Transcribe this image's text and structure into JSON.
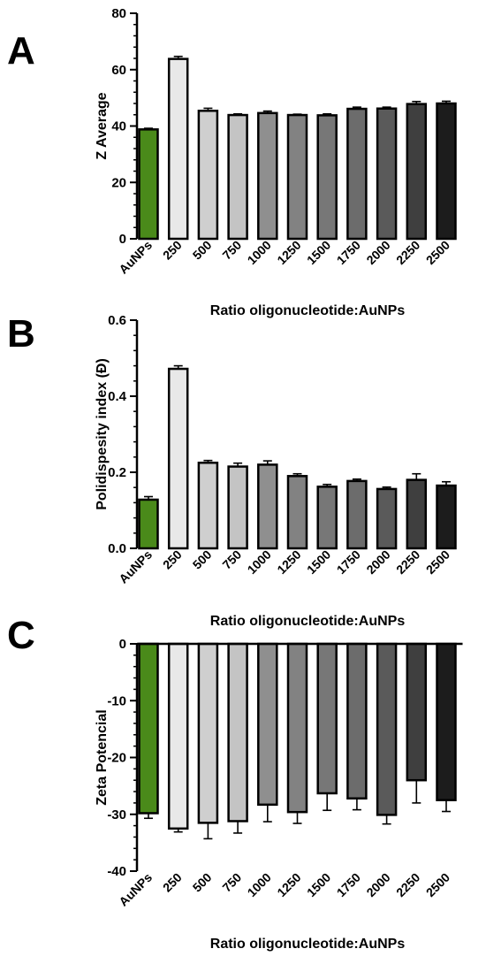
{
  "colors": {
    "AuNPs": "#4a8a1a",
    "250": "#e8e8e8",
    "500": "#cfcfcf",
    "750": "#c4c4c4",
    "1000": "#8f8f8f",
    "1250": "#828282",
    "1500": "#777777",
    "1750": "#6c6c6c",
    "2000": "#5a5a5a",
    "2250": "#3f3f3f",
    "2500": "#1c1c1c"
  },
  "chart_data": [
    {
      "type": "bar",
      "panel": "A",
      "categories": [
        "AuNPs",
        "250",
        "500",
        "750",
        "1000",
        "1250",
        "1500",
        "1750",
        "2000",
        "2250",
        "2500"
      ],
      "values": [
        38.8,
        63.8,
        45.4,
        43.9,
        44.6,
        43.9,
        43.8,
        46.1,
        46.2,
        47.8,
        48.0
      ],
      "errors": [
        0.4,
        0.9,
        0.9,
        0.4,
        0.7,
        0.3,
        0.5,
        0.6,
        0.5,
        0.9,
        0.8
      ],
      "xlabel": "Ratio oligonucleotide:AuNPs",
      "ylabel": "Z Average",
      "ylim": [
        0,
        80
      ],
      "yticks": [
        0,
        20,
        40,
        60,
        80
      ],
      "ytick_labels": [
        "0",
        "20",
        "40",
        "60",
        "80"
      ]
    },
    {
      "type": "bar",
      "panel": "B",
      "categories": [
        "AuNPs",
        "250",
        "500",
        "750",
        "1000",
        "1250",
        "1500",
        "1750",
        "2000",
        "2250",
        "2500"
      ],
      "values": [
        0.128,
        0.472,
        0.225,
        0.215,
        0.22,
        0.19,
        0.162,
        0.177,
        0.156,
        0.18,
        0.165
      ],
      "errors": [
        0.008,
        0.008,
        0.006,
        0.009,
        0.01,
        0.006,
        0.006,
        0.005,
        0.005,
        0.016,
        0.01
      ],
      "xlabel": "Ratio oligonucleotide:AuNPs",
      "ylabel": "Polidispesity index (Đ)",
      "ylim": [
        0,
        0.6
      ],
      "yticks": [
        0,
        0.2,
        0.4,
        0.6
      ],
      "ytick_labels": [
        "0.0",
        "0.2",
        "0.4",
        "0.6"
      ]
    },
    {
      "type": "bar",
      "panel": "C",
      "categories": [
        "AuNPs",
        "250",
        "500",
        "750",
        "1000",
        "1250",
        "1500",
        "1750",
        "2000",
        "2250",
        "2500"
      ],
      "values": [
        -29.8,
        -32.5,
        -31.5,
        -31.2,
        -28.3,
        -29.6,
        -26.3,
        -27.2,
        -30.1,
        -24.0,
        -27.5
      ],
      "errors": [
        0.9,
        0.6,
        2.8,
        2.1,
        3.0,
        2.0,
        3.0,
        2.0,
        1.6,
        4.0,
        2.0
      ],
      "xlabel": "Ratio oligonucleotide:AuNPs",
      "ylabel": "Zeta Potencial",
      "ylim": [
        -40,
        0
      ],
      "yticks": [
        0,
        -10,
        -20,
        -30,
        -40
      ],
      "ytick_labels": [
        "0",
        "-10",
        "-20",
        "-30",
        "-40"
      ]
    }
  ]
}
